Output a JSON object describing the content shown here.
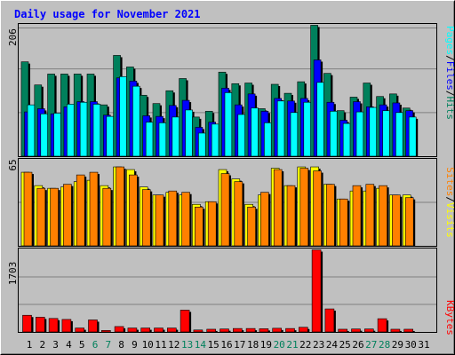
{
  "colors": {
    "background": "#c0c0c0",
    "title": "#0000ff",
    "hits": "#00805c",
    "files": "#0000ff",
    "pages": "#00ffff",
    "visits": "#ffff00",
    "sites": "#ff8000",
    "kbytes": "#ff0000",
    "weekend_day": "#00805c",
    "weekday": "#000000"
  },
  "chart_data": {
    "type": "bar",
    "title": "Daily usage for November 2021",
    "categories": [
      "1",
      "2",
      "3",
      "4",
      "5",
      "6",
      "7",
      "8",
      "9",
      "10",
      "11",
      "12",
      "13",
      "14",
      "15",
      "16",
      "17",
      "18",
      "19",
      "20",
      "21",
      "22",
      "23",
      "24",
      "25",
      "26",
      "27",
      "28",
      "29",
      "30",
      "31"
    ],
    "weekend_days": [
      "6",
      "7",
      "13",
      "14",
      "20",
      "21",
      "27",
      "28"
    ],
    "panels": [
      {
        "max_label": "206",
        "ylim": [
          0,
          206
        ],
        "grid": true,
        "legend": "right-vertical",
        "legend_entries": [
          "Hits",
          "Files",
          "Pages"
        ],
        "separator": "/",
        "series": [
          {
            "name": "Hits",
            "values": [
              147,
              111,
              128,
              128,
              128,
              128,
              80,
              157,
              139,
              95,
              82,
              102,
              121,
              61,
              70,
              131,
              113,
              114,
              74,
              112,
              98,
              116,
              204,
              129,
              71,
              92,
              114,
              93,
              97,
              75,
              null
            ]
          },
          {
            "name": "Files",
            "values": [
              69,
              74,
              66,
              77,
              85,
              85,
              64,
              122,
              117,
              63,
              62,
              79,
              87,
              45,
              53,
              106,
              80,
              97,
              70,
              90,
              86,
              90,
              150,
              84,
              56,
              85,
              77,
              80,
              83,
              71,
              null
            ]
          },
          {
            "name": "Pages",
            "values": [
              80,
              66,
              67,
              81,
              84,
              81,
              62,
              124,
              109,
              53,
              52,
              61,
              72,
              36,
              50,
              99,
              65,
              75,
              52,
              86,
              68,
              84,
              115,
              70,
              51,
              69,
              76,
              71,
              68,
              61,
              null
            ]
          }
        ]
      },
      {
        "max_label": "65",
        "ylim": [
          0,
          65
        ],
        "grid": true,
        "legend": "right-vertical",
        "legend_entries": [
          "Visits",
          "Sites"
        ],
        "separator": "/",
        "series": [
          {
            "name": "Visits",
            "values": [
              55,
              45,
              43,
              44,
              48,
              49,
              45,
              59,
              57,
              44,
              38,
              40,
              38,
              31,
              33,
              57,
              50,
              31,
              38,
              58,
              45,
              59,
              59,
              46,
              35,
              41,
              41,
              43,
              38,
              38,
              null
            ]
          },
          {
            "name": "Sites",
            "values": [
              55,
              43,
              43,
              46,
              53,
              55,
              43,
              59,
              53,
              42,
              38,
              41,
              40,
              29,
              33,
              54,
              48,
              29,
              40,
              57,
              45,
              58,
              56,
              46,
              35,
              45,
              46,
              45,
              38,
              36,
              null
            ]
          }
        ]
      },
      {
        "max_label": "1703",
        "ylim": [
          0,
          1703
        ],
        "grid": true,
        "legend": "right-vertical",
        "legend_entries": [
          "KBytes"
        ],
        "separator": "",
        "series": [
          {
            "name": "KBytes",
            "values": [
              340,
              300,
              275,
              255,
              80,
              245,
              30,
              110,
              80,
              80,
              80,
              80,
              445,
              40,
              55,
              60,
              70,
              70,
              65,
              75,
              70,
              95,
              1675,
              470,
              55,
              60,
              60,
              270,
              55,
              55,
              null
            ]
          }
        ]
      }
    ]
  }
}
